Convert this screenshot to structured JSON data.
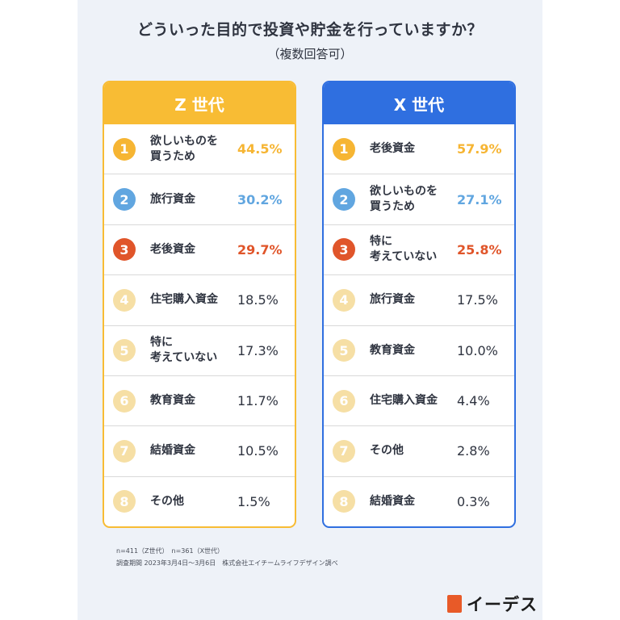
{
  "title": "どういった目的で投資や貯金を行っていますか？",
  "subtitle": "（複数回答可）",
  "colors": {
    "z_accent": "#f8bc34",
    "x_accent": "#2f6fe0",
    "rank1": "#f6b533",
    "rank2": "#61a6e0",
    "rank3": "#e0552a",
    "rank_other": "#f6dfa5"
  },
  "panels": [
    {
      "header": "Z 世代",
      "rows": [
        {
          "rank": "1",
          "label": "欲しいものを\n買うため",
          "value": "44.5%"
        },
        {
          "rank": "2",
          "label": "旅行資金",
          "value": "30.2%"
        },
        {
          "rank": "3",
          "label": "老後資金",
          "value": "29.7%"
        },
        {
          "rank": "4",
          "label": "住宅購入資金",
          "value": "18.5%"
        },
        {
          "rank": "5",
          "label": "特に\n考えていない",
          "value": "17.3%"
        },
        {
          "rank": "6",
          "label": "教育資金",
          "value": "11.7%"
        },
        {
          "rank": "7",
          "label": "結婚資金",
          "value": "10.5%"
        },
        {
          "rank": "8",
          "label": "その他",
          "value": "1.5%"
        }
      ]
    },
    {
      "header": "X 世代",
      "rows": [
        {
          "rank": "1",
          "label": "老後資金",
          "value": "57.9%"
        },
        {
          "rank": "2",
          "label": "欲しいものを\n買うため",
          "value": "27.1%"
        },
        {
          "rank": "3",
          "label": "特に\n考えていない",
          "value": "25.8%"
        },
        {
          "rank": "4",
          "label": "旅行資金",
          "value": "17.5%"
        },
        {
          "rank": "5",
          "label": "教育資金",
          "value": "10.0%"
        },
        {
          "rank": "6",
          "label": "住宅購入資金",
          "value": "4.4%"
        },
        {
          "rank": "7",
          "label": "その他",
          "value": "2.8%"
        },
        {
          "rank": "8",
          "label": "結婚資金",
          "value": "0.3%"
        }
      ]
    }
  ],
  "footnote": {
    "sample": "n=411（Z世代）　n=361（X世代）",
    "period": "調査期間  2023年3月4日～3月6日　株式会社エイチームライフデザイン調べ"
  },
  "logo": {
    "text": "イーデス",
    "icon": "edesu-logo-icon"
  }
}
